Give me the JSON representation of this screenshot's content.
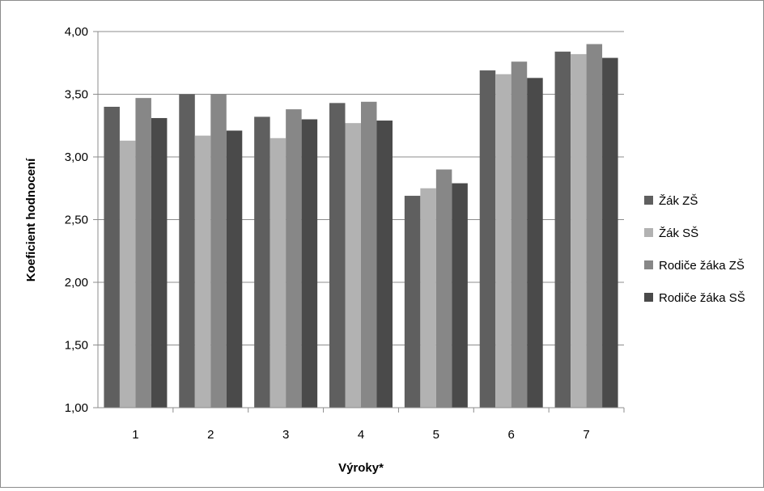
{
  "chart_data": {
    "type": "bar",
    "title": "",
    "xlabel": "Výroky*",
    "ylabel": "Koeficient hodnocení",
    "ylim": [
      1.0,
      4.0
    ],
    "yticks": [
      "1,00",
      "1,50",
      "2,00",
      "2,50",
      "3,00",
      "3,50",
      "4,00"
    ],
    "ytick_values": [
      1.0,
      1.5,
      2.0,
      2.5,
      3.0,
      3.5,
      4.0
    ],
    "categories": [
      "1",
      "2",
      "3",
      "4",
      "5",
      "6",
      "7"
    ],
    "grid": "horizontal",
    "legend_position": "right",
    "series": [
      {
        "name": "Žák ZŠ",
        "color": "#5f5f5f",
        "values": [
          3.4,
          3.5,
          3.32,
          3.43,
          2.69,
          3.69,
          3.84
        ]
      },
      {
        "name": "Žák SŠ",
        "color": "#b2b2b2",
        "values": [
          3.13,
          3.17,
          3.15,
          3.27,
          2.75,
          3.66,
          3.82
        ]
      },
      {
        "name": "Rodiče žáka ZŠ",
        "color": "#878787",
        "values": [
          3.47,
          3.5,
          3.38,
          3.44,
          2.9,
          3.76,
          3.9
        ]
      },
      {
        "name": "Rodiče žáka SŠ",
        "color": "#4a4a4a",
        "values": [
          3.31,
          3.21,
          3.3,
          3.29,
          2.79,
          3.63,
          3.79
        ]
      }
    ]
  }
}
